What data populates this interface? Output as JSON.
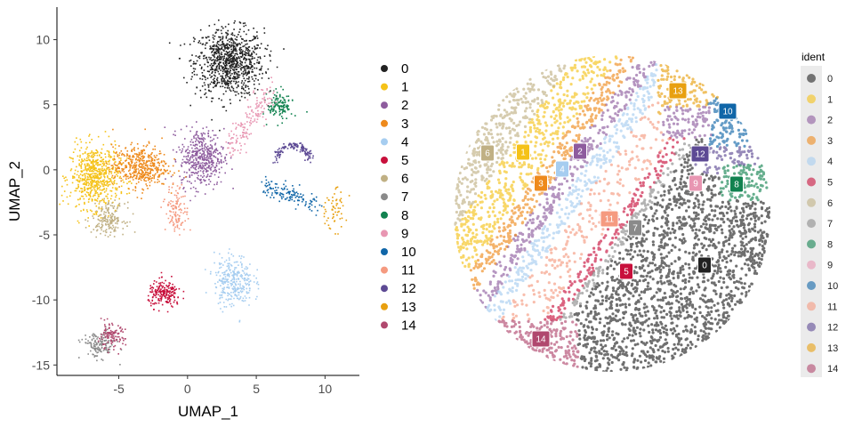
{
  "chart_data": [
    {
      "type": "scatter",
      "title": "",
      "xlabel": "UMAP_1",
      "ylabel": "UMAP_2",
      "xlim": [
        -9.5,
        12.5
      ],
      "ylim": [
        -15.8,
        12.5
      ],
      "xticks": [
        -5,
        0,
        5,
        10
      ],
      "yticks": [
        10,
        5,
        0,
        -5,
        -10,
        -15
      ],
      "legend_placement": "right",
      "grid": false,
      "series": [
        {
          "name": "0",
          "color": "#222222",
          "cx": 3.0,
          "cy": 8.3,
          "sx": 1.25,
          "sy": 1.3
        },
        {
          "name": "1",
          "color": "#f5c218",
          "cx": -6.8,
          "cy": -0.5,
          "sx": 0.9,
          "sy": 1.2
        },
        {
          "name": "2",
          "color": "#8e5c9e",
          "cx": 1.0,
          "cy": 1.0,
          "sx": 0.8,
          "sy": 1.1
        },
        {
          "name": "3",
          "color": "#ee8a1c",
          "cx": -3.5,
          "cy": 0.3,
          "sx": 1.0,
          "sy": 0.8
        },
        {
          "name": "4",
          "color": "#a6cdf0",
          "cx": 3.3,
          "cy": -8.5,
          "sx": 0.7,
          "sy": 1.0
        },
        {
          "name": "5",
          "color": "#c8103c",
          "cx": -1.7,
          "cy": -9.5,
          "sx": 0.6,
          "sy": 0.5
        },
        {
          "name": "6",
          "color": "#c0b084",
          "cx": -5.8,
          "cy": -3.7,
          "sx": 0.6,
          "sy": 0.6
        },
        {
          "name": "7",
          "color": "#8a8a8a",
          "cx": -6.5,
          "cy": -13.4,
          "sx": 0.6,
          "sy": 0.5
        },
        {
          "name": "8",
          "color": "#128250",
          "cx": 6.7,
          "cy": 5.0,
          "sx": 0.45,
          "sy": 0.55
        },
        {
          "name": "9",
          "color": "#e896b2",
          "cx": 3.8,
          "cy": 4.0,
          "sx": 1.4,
          "sy": 0.9
        },
        {
          "name": "10",
          "color": "#1066a8",
          "cx": 7.5,
          "cy": -1.8,
          "sx": 1.0,
          "sy": 0.4
        },
        {
          "name": "11",
          "color": "#f59a80",
          "cx": -0.8,
          "cy": -3.0,
          "sx": 0.4,
          "sy": 0.9
        },
        {
          "name": "12",
          "color": "#5d4a94",
          "cx": 7.7,
          "cy": 1.0,
          "sx": 0.9,
          "sy": 0.7
        },
        {
          "name": "13",
          "color": "#e8a010",
          "cx": 10.5,
          "cy": -3.0,
          "sx": 0.5,
          "sy": 0.8
        },
        {
          "name": "14",
          "color": "#b0486e",
          "cx": -5.6,
          "cy": -12.8,
          "sx": 0.5,
          "sy": 0.5
        }
      ]
    },
    {
      "type": "scatter",
      "title": "",
      "legend_title": "ident",
      "legend_placement": "right",
      "grid": false,
      "axes_visible": false,
      "cluster_labels": [
        "0",
        "1",
        "2",
        "3",
        "4",
        "5",
        "6",
        "7",
        "8",
        "9",
        "10",
        "11",
        "12",
        "13",
        "14"
      ],
      "legend": [
        "0",
        "1",
        "2",
        "3",
        "4",
        "5",
        "6",
        "7",
        "8",
        "9",
        "10",
        "11",
        "12",
        "13",
        "14"
      ]
    }
  ]
}
